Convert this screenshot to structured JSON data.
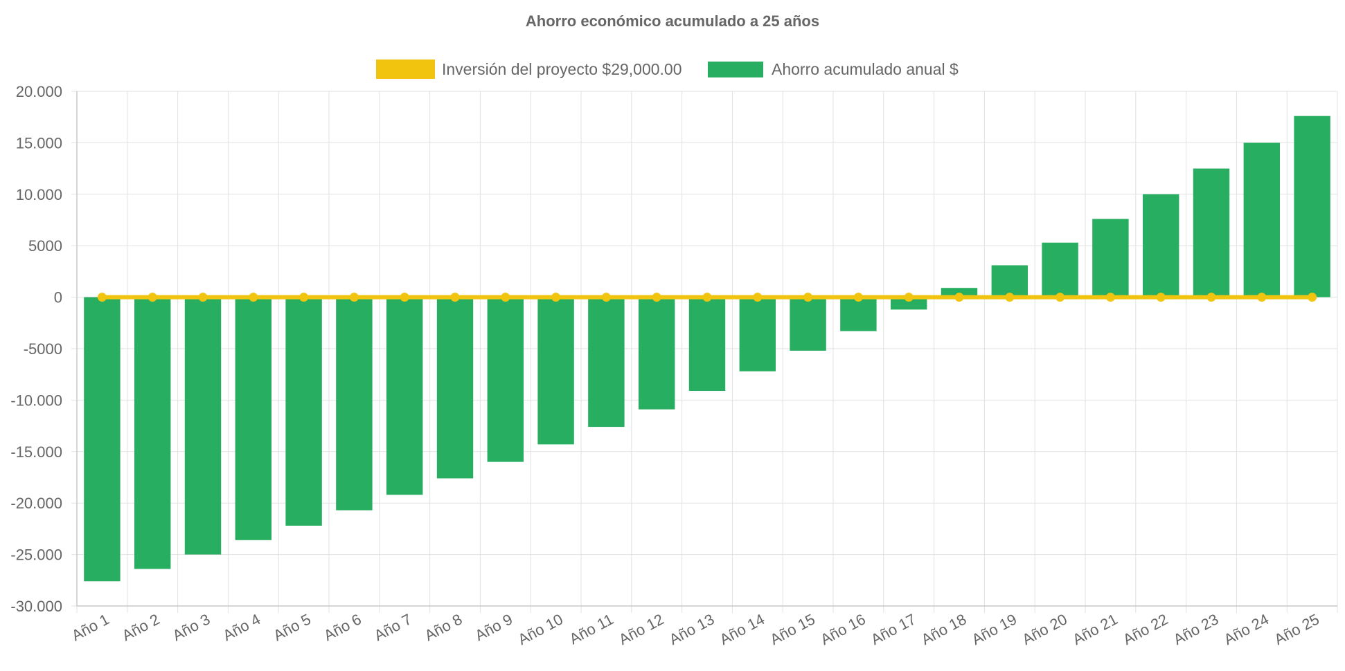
{
  "chart_data": {
    "type": "bar",
    "title": "Ahorro económico acumulado a 25 años",
    "categories": [
      "Año 1",
      "Año 2",
      "Año 3",
      "Año 4",
      "Año 5",
      "Año 6",
      "Año 7",
      "Año 8",
      "Año 9",
      "Año 10",
      "Año 11",
      "Año 12",
      "Año 13",
      "Año 14",
      "Año 15",
      "Año 16",
      "Año 17",
      "Año 18",
      "Año 19",
      "Año 20",
      "Año 21",
      "Año 22",
      "Año 23",
      "Año 24",
      "Año 25"
    ],
    "series": [
      {
        "name": "Inversión del proyecto $29,000.00",
        "kind": "line",
        "color": "#f1c40f",
        "values": [
          0,
          0,
          0,
          0,
          0,
          0,
          0,
          0,
          0,
          0,
          0,
          0,
          0,
          0,
          0,
          0,
          0,
          0,
          0,
          0,
          0,
          0,
          0,
          0,
          0
        ]
      },
      {
        "name": "Ahorro acumulado anual $",
        "kind": "bar",
        "color": "#27ae60",
        "values": [
          -27600,
          -26400,
          -25000,
          -23600,
          -22200,
          -20700,
          -19200,
          -17600,
          -16000,
          -14300,
          -12600,
          -10900,
          -9100,
          -7200,
          -5200,
          -3300,
          -1200,
          900,
          3100,
          5300,
          7600,
          10000,
          12500,
          15000,
          17600
        ]
      }
    ],
    "ylim": [
      -30000,
      20000
    ],
    "yticks": [
      {
        "value": 20000,
        "label": "20.000"
      },
      {
        "value": 15000,
        "label": "15.000"
      },
      {
        "value": 10000,
        "label": "10.000"
      },
      {
        "value": 5000,
        "label": "5000"
      },
      {
        "value": 0,
        "label": "0"
      },
      {
        "value": -5000,
        "label": "-5000"
      },
      {
        "value": -10000,
        "label": "-10.000"
      },
      {
        "value": -15000,
        "label": "-15.000"
      },
      {
        "value": -20000,
        "label": "-20.000"
      },
      {
        "value": -25000,
        "label": "-25.000"
      },
      {
        "value": -30000,
        "label": "-30.000"
      }
    ],
    "grid": true,
    "legend_position": "top"
  }
}
